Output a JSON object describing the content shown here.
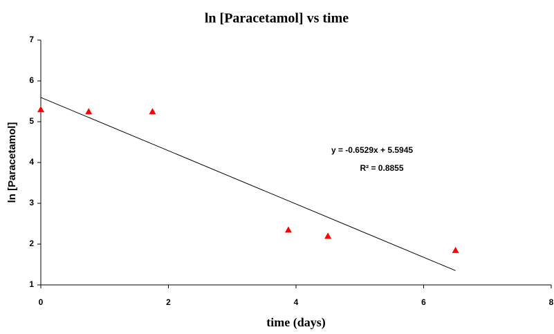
{
  "chart_data": {
    "type": "scatter",
    "title": "ln [Paracetamol] vs time",
    "x_label": "time (days)",
    "y_label": "ln [Paracetamol]",
    "series": [
      {
        "name": "ln [Paracetamol]",
        "color": "#ff0000",
        "marker": "triangle",
        "x": [
          0,
          0.75,
          1.75,
          3.88,
          4.5,
          6.5
        ],
        "values": [
          5.3,
          5.25,
          5.25,
          2.35,
          2.2,
          1.85
        ]
      }
    ],
    "trendline": {
      "slope": -0.6529,
      "intercept": 5.5945,
      "xlim": [
        0,
        6.5
      ],
      "color": "#000000"
    },
    "annotations": [
      "y = -0.6529x + 5.5945",
      "R² = 0.8855"
    ],
    "xlim": [
      0,
      8
    ],
    "xticks": [
      0,
      2,
      4,
      6,
      8
    ],
    "ylim": [
      1,
      7
    ],
    "yticks": [
      1,
      2,
      3,
      4,
      5,
      6,
      7
    ],
    "grid": false
  }
}
